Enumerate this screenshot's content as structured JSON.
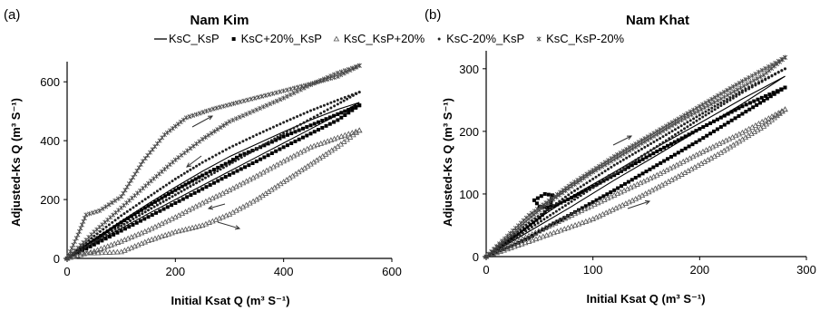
{
  "legend": {
    "position": "top-center",
    "items": [
      {
        "label": "KsC_KsP",
        "marker": "line"
      },
      {
        "label": "KsC+20%_KsP",
        "marker": "square"
      },
      {
        "label": "KsC_KsP+20%",
        "marker": "triangle"
      },
      {
        "label": "KsC-20%_KsP",
        "marker": "dot"
      },
      {
        "label": "KsC_KsP-20%",
        "marker": "star"
      }
    ]
  },
  "chart_data": [
    {
      "type": "scatter",
      "panel_label": "(a)",
      "title": "Nam Kim",
      "xlabel": "Initial Ksat Q (m³ S⁻¹)",
      "ylabel": "Adjusted-Ks Q (m³ S⁻¹)",
      "xlim": [
        0,
        600
      ],
      "ylim": [
        0,
        650
      ],
      "xticks": [
        "0",
        "200",
        "400",
        "600"
      ],
      "yticks": [
        "0",
        "200",
        "400",
        "600"
      ],
      "grid": false,
      "series": [
        {
          "name": "KsC_KsP",
          "marker": "line",
          "rising": [
            [
              0,
              0
            ],
            [
              50,
              52
            ],
            [
              100,
              102
            ],
            [
              150,
              152
            ],
            [
              200,
              200
            ],
            [
              250,
              248
            ],
            [
              300,
              296
            ],
            [
              350,
              344
            ],
            [
              400,
              392
            ],
            [
              450,
              440
            ],
            [
              500,
              488
            ],
            [
              540,
              530
            ]
          ],
          "falling": [
            [
              540,
              530
            ],
            [
              500,
              506
            ],
            [
              450,
              470
            ],
            [
              400,
              430
            ],
            [
              350,
              388
            ],
            [
              300,
              346
            ],
            [
              250,
              296
            ],
            [
              200,
              242
            ],
            [
              150,
              186
            ],
            [
              100,
              127
            ],
            [
              50,
              66
            ],
            [
              0,
              0
            ]
          ]
        },
        {
          "name": "KsC+20%_KsP",
          "marker": "square",
          "rising": [
            [
              0,
              0
            ],
            [
              50,
              47
            ],
            [
              100,
              94
            ],
            [
              150,
              141
            ],
            [
              200,
              188
            ],
            [
              250,
              236
            ],
            [
              300,
              284
            ],
            [
              350,
              330
            ],
            [
              400,
              378
            ],
            [
              450,
              424
            ],
            [
              500,
              470
            ],
            [
              540,
              520
            ]
          ],
          "falling": [
            [
              540,
              520
            ],
            [
              500,
              490
            ],
            [
              450,
              452
            ],
            [
              400,
              414
            ],
            [
              350,
              372
            ],
            [
              320,
              350
            ],
            [
              300,
              328
            ],
            [
              250,
              282
            ],
            [
              200,
              232
            ],
            [
              150,
              178
            ],
            [
              100,
              122
            ],
            [
              50,
              62
            ],
            [
              0,
              0
            ]
          ]
        },
        {
          "name": "KsC_KsP+20%",
          "marker": "triangle",
          "rising": [
            [
              0,
              0
            ],
            [
              20,
              18
            ],
            [
              50,
              18
            ],
            [
              100,
              22
            ],
            [
              150,
              60
            ],
            [
              200,
              90
            ],
            [
              250,
              112
            ],
            [
              300,
              150
            ],
            [
              350,
              200
            ],
            [
              400,
              260
            ],
            [
              450,
              320
            ],
            [
              500,
              380
            ],
            [
              540,
              435
            ]
          ],
          "falling": [
            [
              540,
              435
            ],
            [
              500,
              410
            ],
            [
              450,
              378
            ],
            [
              400,
              330
            ],
            [
              350,
              280
            ],
            [
              300,
              232
            ],
            [
              250,
              188
            ],
            [
              200,
              140
            ],
            [
              150,
              96
            ],
            [
              100,
              58
            ],
            [
              50,
              24
            ],
            [
              0,
              0
            ]
          ]
        },
        {
          "name": "KsC-20%_KsP",
          "marker": "dot",
          "rising": [
            [
              0,
              0
            ],
            [
              50,
              56
            ],
            [
              100,
              110
            ],
            [
              150,
              164
            ],
            [
              200,
              216
            ],
            [
              250,
              268
            ],
            [
              300,
              320
            ],
            [
              350,
              372
            ],
            [
              400,
              424
            ],
            [
              450,
              474
            ],
            [
              500,
              524
            ],
            [
              540,
              565
            ]
          ],
          "falling": [
            [
              540,
              565
            ],
            [
              500,
              538
            ],
            [
              450,
              502
            ],
            [
              400,
              462
            ],
            [
              350,
              420
            ],
            [
              300,
              376
            ],
            [
              250,
              326
            ],
            [
              200,
              270
            ],
            [
              150,
              208
            ],
            [
              100,
              145
            ],
            [
              50,
              76
            ],
            [
              0,
              0
            ]
          ]
        },
        {
          "name": "KsC_KsP-20%",
          "marker": "star",
          "rising": [
            [
              0,
              0
            ],
            [
              20,
              80
            ],
            [
              35,
              148
            ],
            [
              60,
              162
            ],
            [
              100,
              210
            ],
            [
              140,
              330
            ],
            [
              180,
              420
            ],
            [
              220,
              478
            ],
            [
              270,
              508
            ],
            [
              320,
              532
            ],
            [
              380,
              560
            ],
            [
              440,
              588
            ],
            [
              500,
              618
            ],
            [
              540,
              655
            ]
          ],
          "falling": [
            [
              540,
              655
            ],
            [
              500,
              630
            ],
            [
              450,
              590
            ],
            [
              400,
              545
            ],
            [
              350,
              505
            ],
            [
              300,
              465
            ],
            [
              250,
              405
            ],
            [
              200,
              335
            ],
            [
              150,
              255
            ],
            [
              100,
              172
            ],
            [
              50,
              90
            ],
            [
              0,
              0
            ]
          ]
        }
      ],
      "annotations": [
        "arrow",
        "arrow",
        "arrow",
        "arrow"
      ]
    },
    {
      "type": "scatter",
      "panel_label": "(b)",
      "title": "Nam Khat",
      "xlabel": "Initial Ksat Q (m³ S⁻¹)",
      "ylabel": "Adjusted-Ks Q (m³ S⁻¹)",
      "xlim": [
        0,
        300
      ],
      "ylim": [
        0,
        320
      ],
      "xticks": [
        "0",
        "100",
        "200",
        "300"
      ],
      "yticks": [
        "0",
        "100",
        "200",
        "300"
      ],
      "grid": false,
      "series": [
        {
          "name": "KsC_KsP",
          "marker": "line",
          "rising": [
            [
              0,
              0
            ],
            [
              40,
              40
            ],
            [
              80,
              80
            ],
            [
              120,
              122
            ],
            [
              160,
              162
            ],
            [
              200,
              203
            ],
            [
              240,
              244
            ],
            [
              280,
              288
            ]
          ],
          "falling": [
            [
              280,
              288
            ],
            [
              240,
              252
            ],
            [
              200,
              213
            ],
            [
              160,
              175
            ],
            [
              120,
              135
            ],
            [
              80,
              96
            ],
            [
              50,
              62
            ],
            [
              30,
              36
            ],
            [
              0,
              0
            ]
          ]
        },
        {
          "name": "KsC+20%_KsP",
          "marker": "square",
          "rising": [
            [
              0,
              0
            ],
            [
              20,
              14
            ],
            [
              40,
              30
            ],
            [
              60,
              50
            ],
            [
              80,
              68
            ],
            [
              120,
              106
            ],
            [
              160,
              146
            ],
            [
              200,
              186
            ],
            [
              240,
              228
            ],
            [
              280,
              270
            ]
          ],
          "falling": [
            [
              280,
              270
            ],
            [
              240,
              240
            ],
            [
              200,
              204
            ],
            [
              160,
              168
            ],
            [
              120,
              130
            ],
            [
              80,
              94
            ],
            [
              60,
              78
            ],
            [
              50,
              80
            ],
            [
              45,
              90
            ],
            [
              55,
              100
            ],
            [
              62,
              98
            ],
            [
              60,
              80
            ],
            [
              50,
              62
            ],
            [
              30,
              36
            ],
            [
              0,
              0
            ]
          ]
        },
        {
          "name": "KsC_KsP+20%",
          "marker": "triangle",
          "rising": [
            [
              0,
              0
            ],
            [
              40,
              24
            ],
            [
              80,
              48
            ],
            [
              100,
              60
            ],
            [
              140,
              92
            ],
            [
              180,
              128
            ],
            [
              220,
              166
            ],
            [
              260,
              208
            ],
            [
              280,
              235
            ]
          ],
          "falling": [
            [
              280,
              235
            ],
            [
              240,
              198
            ],
            [
              200,
              165
            ],
            [
              160,
              130
            ],
            [
              120,
              98
            ],
            [
              80,
              66
            ],
            [
              40,
              33
            ],
            [
              0,
              0
            ]
          ]
        },
        {
          "name": "KsC-20%_KsP",
          "marker": "dot",
          "rising": [
            [
              0,
              0
            ],
            [
              40,
              44
            ],
            [
              80,
              88
            ],
            [
              120,
              132
            ],
            [
              160,
              176
            ],
            [
              200,
              220
            ],
            [
              240,
              262
            ],
            [
              280,
              300
            ]
          ],
          "falling": [
            [
              280,
              300
            ],
            [
              240,
              265
            ],
            [
              200,
              226
            ],
            [
              160,
              186
            ],
            [
              120,
              146
            ],
            [
              80,
              102
            ],
            [
              40,
              54
            ],
            [
              0,
              0
            ]
          ]
        },
        {
          "name": "KsC_KsP-20%",
          "marker": "star",
          "rising": [
            [
              0,
              0
            ],
            [
              20,
              30
            ],
            [
              40,
              60
            ],
            [
              60,
              88
            ],
            [
              80,
              112
            ],
            [
              100,
              135
            ],
            [
              140,
              175
            ],
            [
              180,
              215
            ],
            [
              220,
              252
            ],
            [
              260,
              290
            ],
            [
              280,
              318
            ]
          ],
          "falling": [
            [
              280,
              318
            ],
            [
              240,
              280
            ],
            [
              200,
              240
            ],
            [
              160,
              200
            ],
            [
              120,
              160
            ],
            [
              80,
              116
            ],
            [
              40,
              66
            ],
            [
              0,
              0
            ]
          ]
        }
      ],
      "annotations": [
        "arrow",
        "arrow",
        "arrow"
      ]
    }
  ]
}
